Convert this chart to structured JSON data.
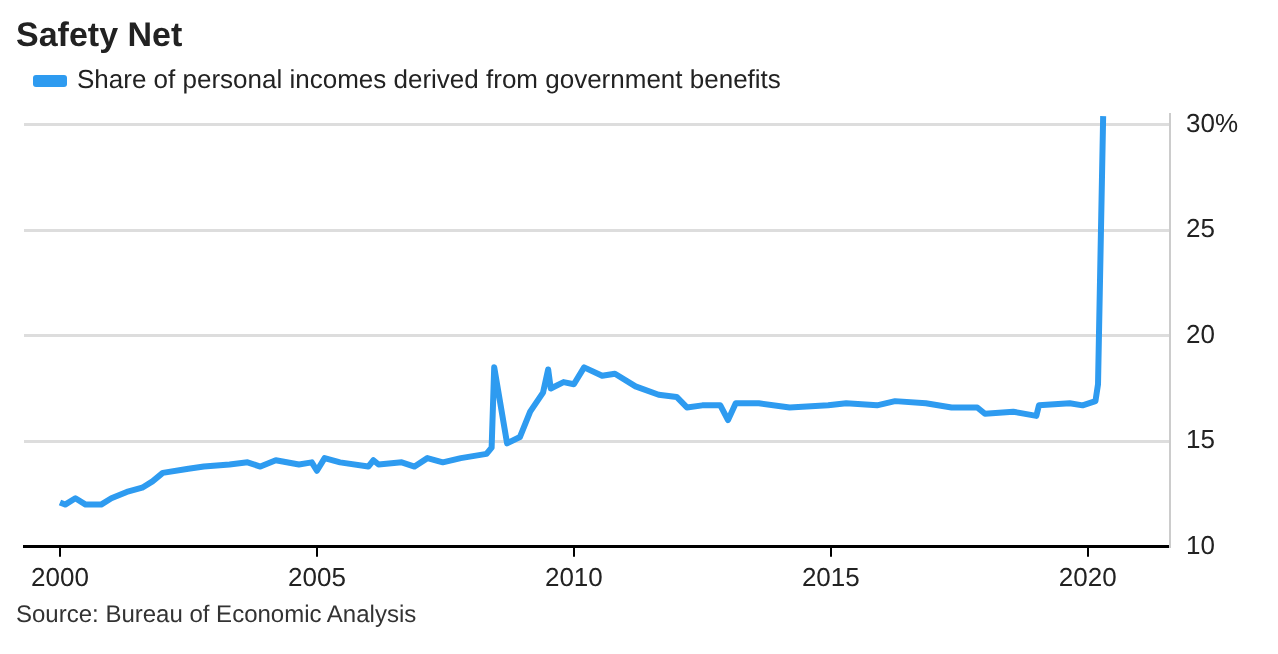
{
  "chart_data": {
    "type": "line",
    "title": "Safety Net",
    "annotations": [
      "Source: Bureau of Economic Analysis"
    ],
    "x": [
      2000.0,
      2000.1,
      2000.3,
      2000.5,
      2000.8,
      2001.0,
      2001.3,
      2001.6,
      2001.8,
      2002.0,
      2002.5,
      2002.8,
      2003.3,
      2003.65,
      2003.9,
      2004.2,
      2004.65,
      2004.9,
      2005.0,
      2005.15,
      2005.45,
      2006.0,
      2006.1,
      2006.2,
      2006.65,
      2006.9,
      2007.15,
      2007.45,
      2007.8,
      2008.3,
      2008.4,
      2008.45,
      2008.7,
      2008.95,
      2009.15,
      2009.4,
      2009.5,
      2009.55,
      2009.8,
      2010.0,
      2010.2,
      2010.55,
      2010.8,
      2011.2,
      2011.65,
      2012.0,
      2012.2,
      2012.5,
      2012.85,
      2013.0,
      2013.15,
      2013.6,
      2014.2,
      2014.95,
      2015.3,
      2015.9,
      2016.25,
      2016.85,
      2017.35,
      2017.85,
      2018.0,
      2018.55,
      2019.0,
      2019.05,
      2019.65,
      2019.9,
      2020.15,
      2020.2,
      2020.3
    ],
    "series": [
      {
        "name": "Share of personal incomes derived from government benefits",
        "color": "#2e9bf0",
        "values": [
          12.1,
          12.0,
          12.3,
          12.0,
          12.0,
          12.3,
          12.6,
          12.8,
          13.1,
          13.5,
          13.7,
          13.8,
          13.9,
          14.0,
          13.8,
          14.1,
          13.9,
          14.0,
          13.6,
          14.2,
          14.0,
          13.8,
          14.1,
          13.9,
          14.0,
          13.8,
          14.2,
          14.0,
          14.2,
          14.4,
          14.7,
          18.5,
          14.9,
          15.2,
          16.4,
          17.3,
          18.4,
          17.5,
          17.8,
          17.7,
          18.5,
          18.1,
          18.2,
          17.6,
          17.2,
          17.1,
          16.6,
          16.7,
          16.7,
          16.0,
          16.8,
          16.8,
          16.6,
          16.7,
          16.8,
          16.7,
          16.9,
          16.8,
          16.6,
          16.6,
          16.3,
          16.4,
          16.2,
          16.7,
          16.8,
          16.7,
          16.9,
          17.7,
          30.4
        ]
      }
    ],
    "xlim": [
      1999.3,
      2021.6
    ],
    "xticks": [
      2000,
      2005,
      2010,
      2015,
      2020
    ],
    "ylim": [
      10,
      30.5
    ],
    "yticks": [
      10,
      15,
      20,
      25,
      {
        "value": 30,
        "label": "30%"
      }
    ],
    "grid": "y",
    "legend": "top left",
    "marker": "none",
    "line_style": "solid"
  }
}
